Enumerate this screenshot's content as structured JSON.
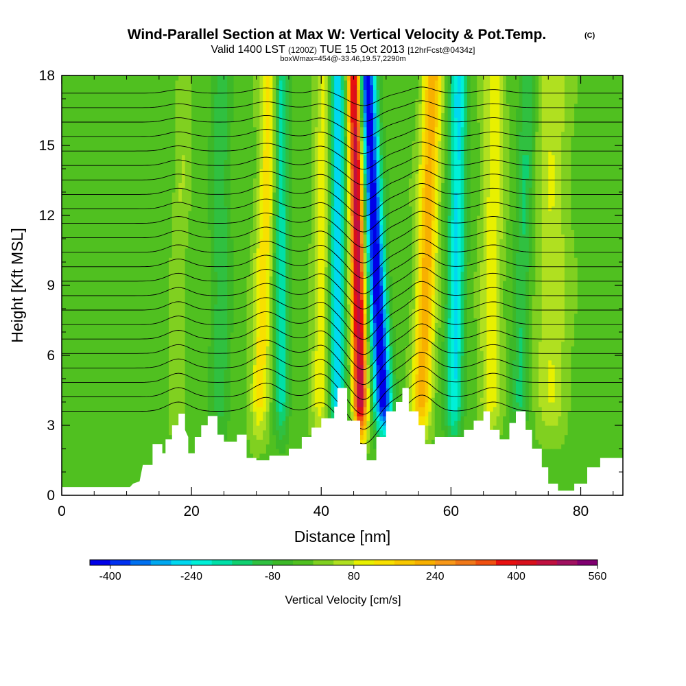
{
  "header": {
    "title": "Wind-Parallel Section at Max W: Vertical Velocity & Pot.Temp.",
    "copyright": "(C)",
    "valid_main": "Valid 1400 LST",
    "valid_z": "(1200Z)",
    "valid_date": "TUE 15 Oct 2013",
    "forecast": "[12hrFcst@0434z]",
    "box": "boxWmax=454@-33.46,19.57,2290m"
  },
  "colors": {
    "strong_down": "#0022ee",
    "down": "#00e0ee",
    "near_zero": "#4cc02c",
    "weak_up": "#f0f000",
    "up": "#f09018",
    "strong_up": "#e81010",
    "max_up": "#800070",
    "terrain": "#ffffff",
    "isentrope": "#000000"
  },
  "chart_data": {
    "type": "heatmap",
    "title": "Wind-Parallel Section at Max W: Vertical Velocity & Pot.Temp.",
    "xlabel": "Distance [nm]",
    "ylabel": "Height [Kft MSL]",
    "xlim": [
      0,
      86.5
    ],
    "ylim": [
      0,
      18
    ],
    "x_ticks": [
      0,
      20,
      40,
      60,
      80
    ],
    "y_ticks": [
      0,
      3,
      6,
      9,
      12,
      15,
      18
    ],
    "x_tick_labels": [
      "0",
      "20",
      "40",
      "60",
      "80"
    ],
    "y_tick_labels": [
      "0",
      "3",
      "6",
      "9",
      "12",
      "15",
      "18"
    ],
    "colorbar": {
      "label": "Vertical Velocity [cm/s]",
      "min": -440,
      "step": 40,
      "n_bins": 25,
      "tick_values": [
        -400,
        -240,
        -80,
        80,
        240,
        400,
        560
      ],
      "tick_labels": [
        "-400",
        "-240",
        "-80",
        "80",
        "240",
        "400",
        "560"
      ],
      "bin_colors": [
        "#0000e8",
        "#0030f0",
        "#0070f0",
        "#00a8f0",
        "#00d8f0",
        "#00f0d8",
        "#00e0a8",
        "#10d070",
        "#30c040",
        "#3cb828",
        "#50c020",
        "#80d020",
        "#b0e020",
        "#e8f000",
        "#f8e000",
        "#f8c800",
        "#f8b000",
        "#f89818",
        "#f07818",
        "#f05010",
        "#e81010",
        "#d8101c",
        "#c01040",
        "#a01060",
        "#800070"
      ]
    },
    "terrain_kft": [
      [
        0,
        0.35
      ],
      [
        5,
        0.35
      ],
      [
        10.5,
        0.35
      ],
      [
        11,
        0.5
      ],
      [
        12,
        0.6
      ],
      [
        12.5,
        1.3
      ],
      [
        14,
        1.3
      ],
      [
        14,
        2.2
      ],
      [
        15.5,
        2.2
      ],
      [
        15.5,
        1.8
      ],
      [
        16,
        1.8
      ],
      [
        16,
        2.4
      ],
      [
        17,
        2.4
      ],
      [
        17,
        3.0
      ],
      [
        18,
        3.0
      ],
      [
        18,
        3.5
      ],
      [
        19,
        3.5
      ],
      [
        19,
        2.8
      ],
      [
        19.5,
        2.5
      ],
      [
        19.5,
        1.8
      ],
      [
        20.5,
        1.8
      ],
      [
        20.5,
        2.5
      ],
      [
        21.5,
        2.5
      ],
      [
        21.5,
        3.0
      ],
      [
        22.5,
        3.0
      ],
      [
        22.5,
        3.4
      ],
      [
        24,
        3.4
      ],
      [
        24,
        2.6
      ],
      [
        25,
        2.6
      ],
      [
        25,
        2.3
      ],
      [
        27,
        2.3
      ],
      [
        27,
        2.6
      ],
      [
        28.5,
        2.6
      ],
      [
        28.5,
        1.6
      ],
      [
        30,
        1.6
      ],
      [
        30,
        1.5
      ],
      [
        32,
        1.5
      ],
      [
        32,
        1.7
      ],
      [
        35,
        1.7
      ],
      [
        35,
        2.0
      ],
      [
        37,
        2.0
      ],
      [
        37,
        2.5
      ],
      [
        38.5,
        2.5
      ],
      [
        38.5,
        2.9
      ],
      [
        40,
        2.9
      ],
      [
        40,
        3.3
      ],
      [
        42,
        3.3
      ],
      [
        42,
        3.8
      ],
      [
        42.5,
        3.8
      ],
      [
        42.5,
        4.6
      ],
      [
        44,
        4.6
      ],
      [
        44,
        3.2
      ],
      [
        46,
        3.2
      ],
      [
        46,
        2.2
      ],
      [
        47,
        2.2
      ],
      [
        47,
        1.5
      ],
      [
        48.5,
        1.5
      ],
      [
        48.5,
        2.5
      ],
      [
        50,
        2.5
      ],
      [
        50,
        3.6
      ],
      [
        51.5,
        3.6
      ],
      [
        51.5,
        4.0
      ],
      [
        52.5,
        4.0
      ],
      [
        52.5,
        4.6
      ],
      [
        53.5,
        4.6
      ],
      [
        53.5,
        3.6
      ],
      [
        55,
        3.6
      ],
      [
        55,
        3.0
      ],
      [
        56,
        3.0
      ],
      [
        56,
        2.2
      ],
      [
        57.5,
        2.2
      ],
      [
        57.5,
        2.5
      ],
      [
        62,
        2.5
      ],
      [
        62,
        2.8
      ],
      [
        63.5,
        2.8
      ],
      [
        63.5,
        3.2
      ],
      [
        65,
        3.2
      ],
      [
        65,
        3.6
      ],
      [
        66,
        3.6
      ],
      [
        66,
        2.8
      ],
      [
        67.5,
        2.8
      ],
      [
        67.5,
        2.4
      ],
      [
        69,
        2.4
      ],
      [
        69,
        3.1
      ],
      [
        70,
        3.1
      ],
      [
        70,
        3.6
      ],
      [
        71.5,
        3.6
      ],
      [
        71.5,
        2.8
      ],
      [
        72.5,
        2.8
      ],
      [
        72.5,
        2.0
      ],
      [
        74,
        2.0
      ],
      [
        74,
        1.2
      ],
      [
        75,
        1.2
      ],
      [
        75,
        0.5
      ],
      [
        76.5,
        0.5
      ],
      [
        76.5,
        0.2
      ],
      [
        79,
        0.2
      ],
      [
        79,
        0.5
      ],
      [
        81,
        0.5
      ],
      [
        81,
        1.2
      ],
      [
        83,
        1.2
      ],
      [
        83,
        1.6
      ],
      [
        86.5,
        1.6
      ]
    ],
    "updraft_cores": [
      {
        "x": 46.0,
        "tilt": -0.06,
        "w": 500,
        "width": 1.1
      },
      {
        "x": 30.5,
        "tilt": 0.12,
        "w": 160,
        "width": 1.4
      },
      {
        "x": 55.5,
        "tilt": 0.12,
        "w": 240,
        "width": 1.5
      },
      {
        "x": 39.8,
        "tilt": 0.05,
        "w": 120,
        "width": 1.3
      },
      {
        "x": 17.5,
        "tilt": 0.1,
        "w": 50,
        "width": 1.1
      },
      {
        "x": 66.0,
        "tilt": 0.05,
        "w": 120,
        "width": 1.6
      },
      {
        "x": 75.5,
        "tilt": 0.0,
        "w": 90,
        "width": 2.5
      }
    ],
    "downdraft_cores": [
      {
        "x": 49.5,
        "tilt": -0.18,
        "w": -430,
        "width": 1.4
      },
      {
        "x": 42.5,
        "tilt": 0.0,
        "w": -260,
        "width": 1.2
      },
      {
        "x": 33.8,
        "tilt": 0.0,
        "w": -180,
        "width": 1.1
      },
      {
        "x": 24.5,
        "tilt": 0.0,
        "w": -90,
        "width": 1.5
      },
      {
        "x": 60.5,
        "tilt": 0.05,
        "w": -240,
        "width": 1.3
      },
      {
        "x": 70.5,
        "tilt": 0.1,
        "w": -110,
        "width": 1.3
      }
    ],
    "isentropes": {
      "count": 23,
      "base_height_kft": 3.6,
      "spacing_kft": 0.62,
      "waves": [
        {
          "x": 46.5,
          "amp": -1.4,
          "width": 3.2
        },
        {
          "x": 55.5,
          "amp": 0.7,
          "width": 2.5
        },
        {
          "x": 31.5,
          "amp": 0.6,
          "width": 3.0
        },
        {
          "x": 18.0,
          "amp": 0.4,
          "width": 2.5
        },
        {
          "x": 40.0,
          "amp": 0.4,
          "width": 2.0
        },
        {
          "x": 66.5,
          "amp": 0.4,
          "width": 3.0
        }
      ]
    }
  }
}
